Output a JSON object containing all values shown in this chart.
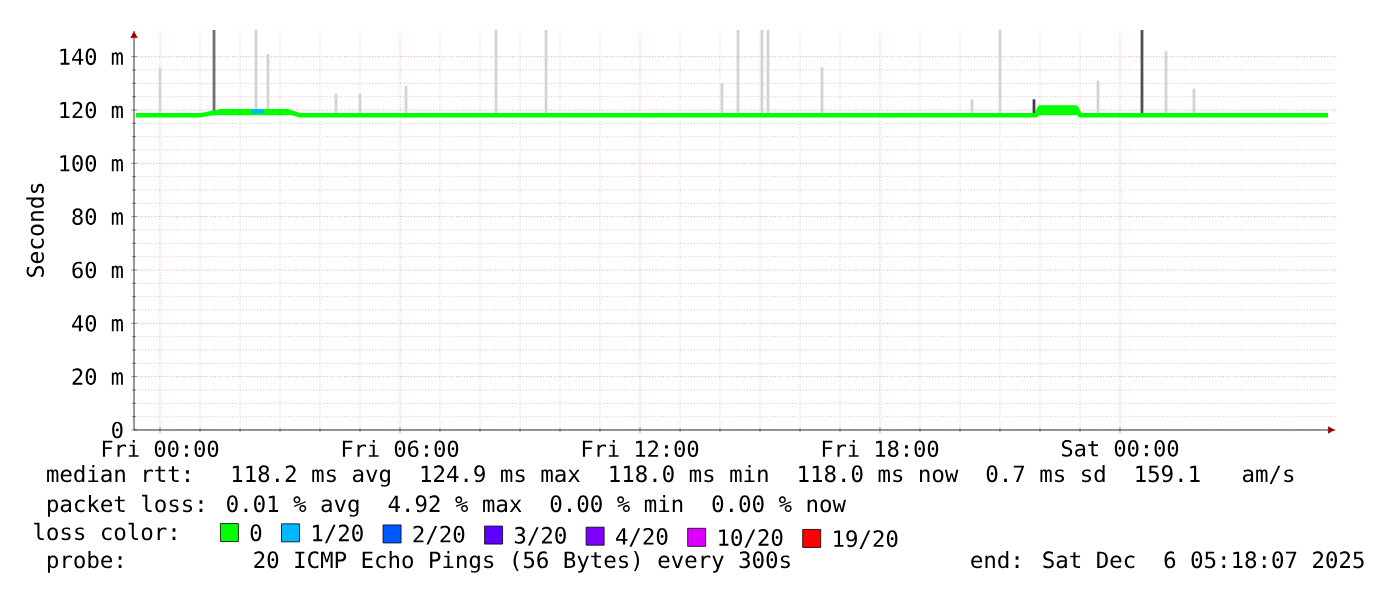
{
  "chart_data": {
    "type": "line",
    "ylabel": "Seconds",
    "legend_title": "loss color:",
    "x": [
      "2025-12-04T23:24",
      "2025-12-05T01:00",
      "2025-12-05T01:30",
      "2025-12-05T02:18",
      "2025-12-05T02:36",
      "2025-12-05T03:12",
      "2025-12-05T03:30",
      "2025-12-05T21:54",
      "2025-12-05T22:00",
      "2025-12-05T22:54",
      "2025-12-05T23:00",
      "2025-12-06T05:12"
    ],
    "series": [
      {
        "name": "0",
        "color": "#00ff00",
        "values": [
          118,
          118,
          119.5,
          119.5,
          119.5,
          119.5,
          118,
          118,
          121,
          121,
          118,
          118
        ]
      },
      {
        "name": "1/20",
        "color": "#00b8ff",
        "x": [
          "2025-12-05T02:18",
          "2025-12-05T02:36"
        ],
        "values": [
          119.5,
          119.5
        ]
      },
      {
        "name": "2/20",
        "color": "#0059ff",
        "values": [
          null,
          null,
          null,
          null,
          null,
          null,
          null,
          null,
          null,
          null,
          null,
          null
        ]
      },
      {
        "name": "3/20",
        "color": "#5e00ff",
        "values": [
          null,
          null,
          null,
          null,
          null,
          null,
          null,
          null,
          null,
          null,
          null,
          null
        ]
      },
      {
        "name": "4/20",
        "color": "#7e00ff",
        "values": [
          null,
          null,
          null,
          null,
          null,
          null,
          null,
          null,
          null,
          null,
          null,
          null
        ]
      },
      {
        "name": "10/20",
        "color": "#dd00ff",
        "values": [
          null,
          null,
          null,
          null,
          null,
          null,
          null,
          null,
          null,
          null,
          null,
          null
        ]
      },
      {
        "name": "19/20",
        "color": "#ff0000",
        "values": [
          null,
          null,
          null,
          null,
          null,
          null,
          null,
          null,
          null,
          null,
          null,
          null
        ]
      },
      {
        "type": "bar",
        "x": [
          "2025-12-05T00:00",
          "2025-12-05T01:21",
          "2025-12-05T02:24",
          "2025-12-05T02:42",
          "2025-12-05T04:24",
          "2025-12-05T05:00",
          "2025-12-05T06:09",
          "2025-12-05T08:24",
          "2025-12-05T09:39",
          "2025-12-05T14:03",
          "2025-12-05T14:27",
          "2025-12-05T15:03",
          "2025-12-05T15:12",
          "2025-12-05T16:33",
          "2025-12-05T20:18",
          "2025-12-05T21:00",
          "2025-12-05T21:51",
          "2025-12-05T23:27",
          "2025-12-06T00:33",
          "2025-12-06T01:09",
          "2025-12-06T01:51"
        ],
        "base": [
          118,
          118,
          118,
          118,
          118,
          118,
          118,
          118,
          118,
          118,
          118,
          118,
          118,
          118,
          118,
          118,
          118,
          118,
          118,
          118,
          118
        ],
        "values": [
          18,
          32,
          32,
          23,
          8,
          8,
          11,
          32,
          32,
          12,
          32,
          32,
          32,
          18,
          6,
          32,
          6,
          13,
          32,
          24,
          10
        ],
        "colors": [
          "#d3d3d3",
          "#707070",
          "#d3d3d3",
          "#d3d3d3",
          "#d3d3d3",
          "#d3d3d3",
          "#d3d3d3",
          "#d3d3d3",
          "#d3d3d3",
          "#d3d3d3",
          "#d3d3d3",
          "#d3d3d3",
          "#d3d3d3",
          "#d3d3d3",
          "#d3d3d3",
          "#d3d3d3",
          "#404040",
          "#d3d3d3",
          "#505050",
          "#d3d3d3",
          "#d3d3d3"
        ]
      }
    ],
    "xlim": [
      "2025-12-04T23:21",
      "2025-12-06T05:24"
    ],
    "xticks": [
      {
        "value": "2025-12-05T00:00",
        "label": "Fri 00:00"
      },
      {
        "value": "2025-12-05T06:00",
        "label": "Fri 06:00"
      },
      {
        "value": "2025-12-05T12:00",
        "label": "Fri 12:00"
      },
      {
        "value": "2025-12-05T18:00",
        "label": "Fri 18:00"
      },
      {
        "value": "2025-12-06T00:00",
        "label": "Sat 00:00"
      }
    ],
    "ylim": [
      0,
      150
    ],
    "yticks": [
      0,
      {
        "value": 20,
        "label": "20 m"
      },
      {
        "value": 40,
        "label": "40 m"
      },
      {
        "value": 60,
        "label": "60 m"
      },
      {
        "value": 80,
        "label": "80 m"
      },
      {
        "value": 100,
        "label": "100 m"
      },
      {
        "value": 120,
        "label": "120 m"
      },
      {
        "value": 140,
        "label": "140 m"
      }
    ],
    "grid": true,
    "legend": "bottom",
    "annotations": [
      "median rtt:  118.2 ms avg  124.9 ms max  118.0 ms min  118.0 ms now  0.7 ms sd  159.1   am/s",
      "packet loss: 0.01 % avg  4.92 % max  0.00 % min  0.00 % now",
      "probe:       20 ICMP Echo Pings (56 Bytes) every 300s",
      "end: Sat Dec  6 05:18:07 2025"
    ]
  }
}
